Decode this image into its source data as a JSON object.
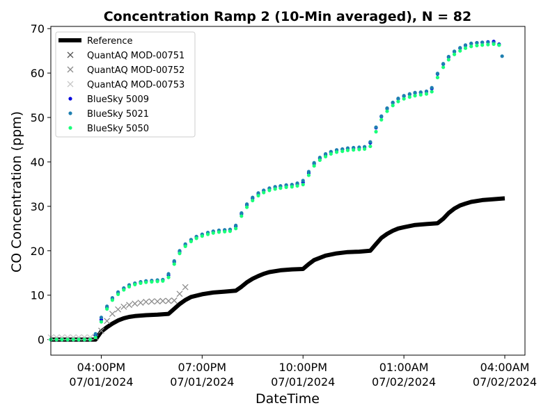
{
  "chart_data": {
    "type": "scatter",
    "title": "Concentration Ramp 2 (10-Min averaged), N = 82",
    "xlabel": "DateTime",
    "ylabel": "CO Concentration (ppm)",
    "x_unit": "hours",
    "xlim": [
      14.5,
      28.6
    ],
    "ylim": [
      -3.5,
      70.5
    ],
    "x_ticks": [
      {
        "x": 16,
        "line1": "04:00PM",
        "line2": "07/01/2024"
      },
      {
        "x": 19,
        "line1": "07:00PM",
        "line2": "07/01/2024"
      },
      {
        "x": 22,
        "line1": "10:00PM",
        "line2": "07/01/2024"
      },
      {
        "x": 25,
        "line1": "01:00AM",
        "line2": "07/02/2024"
      },
      {
        "x": 28,
        "line1": "04:00AM",
        "line2": "07/02/2024"
      }
    ],
    "y_ticks": [
      0,
      10,
      20,
      30,
      40,
      50,
      60,
      70
    ],
    "legend_position": "upper-left",
    "series": [
      {
        "name": "Reference",
        "style": "line",
        "color": "#000000",
        "x": [
          14.5,
          15.0,
          15.5,
          15.83,
          16.0,
          16.17,
          16.33,
          16.5,
          16.67,
          16.83,
          17.0,
          17.33,
          17.67,
          18.0,
          18.33,
          18.5,
          18.67,
          19.0,
          19.33,
          19.67,
          20.0,
          20.17,
          20.33,
          20.5,
          20.67,
          20.83,
          21.0,
          21.33,
          21.67,
          22.0,
          22.17,
          22.33,
          22.67,
          23.0,
          23.33,
          23.67,
          24.0,
          24.17,
          24.33,
          24.5,
          24.67,
          24.83,
          25.0,
          25.33,
          25.67,
          26.0,
          26.17,
          26.33,
          26.5,
          26.67,
          26.83,
          27.0,
          27.33,
          27.67,
          28.0
        ],
        "y": [
          0,
          0,
          0,
          0,
          1.8,
          2.8,
          3.6,
          4.3,
          4.8,
          5.1,
          5.3,
          5.5,
          5.6,
          5.8,
          8.0,
          8.9,
          9.6,
          10.2,
          10.6,
          10.8,
          11.0,
          11.9,
          12.9,
          13.7,
          14.3,
          14.8,
          15.2,
          15.6,
          15.8,
          15.9,
          17.0,
          17.9,
          18.9,
          19.4,
          19.7,
          19.8,
          20.0,
          21.5,
          22.9,
          23.8,
          24.5,
          25.0,
          25.3,
          25.8,
          26.0,
          26.2,
          27.2,
          28.5,
          29.5,
          30.2,
          30.6,
          31.0,
          31.4,
          31.6,
          31.8
        ]
      },
      {
        "name": "QuantAQ MOD-00751",
        "style": "x",
        "color": "#555555",
        "x": [],
        "y": []
      },
      {
        "name": "QuantAQ MOD-00752",
        "style": "x",
        "color": "#8c8c8c",
        "x": [
          15.83,
          16.0,
          16.17,
          16.33,
          16.5,
          16.67,
          16.83,
          17.0,
          17.17,
          17.33,
          17.5,
          17.67,
          17.83,
          18.0,
          18.17,
          18.33,
          18.5
        ],
        "y": [
          0.5,
          2.0,
          4.2,
          5.8,
          6.8,
          7.4,
          7.8,
          8.1,
          8.3,
          8.5,
          8.6,
          8.6,
          8.7,
          8.7,
          8.8,
          10.3,
          11.8
        ]
      },
      {
        "name": "QuantAQ MOD-00753",
        "style": "x",
        "color": "#c8c8c8",
        "x": [
          14.5,
          14.67,
          14.83,
          15.0,
          15.17,
          15.33,
          15.5,
          15.67
        ],
        "y": [
          0.5,
          0.5,
          0.5,
          0.5,
          0.5,
          0.5,
          0.5,
          0.5
        ]
      },
      {
        "name": "BlueSky 5009",
        "style": "dot",
        "color": "#0000dd",
        "x": [
          14.5,
          14.67,
          14.83,
          15.0,
          15.17,
          15.33,
          15.5,
          15.67,
          15.83,
          16.0,
          16.17,
          16.33,
          16.5,
          16.67,
          16.83,
          17.0,
          17.17,
          17.33,
          17.5,
          17.67,
          17.83,
          18.0,
          18.17,
          18.33,
          18.5,
          18.67,
          18.83,
          19.0,
          19.17,
          19.33,
          19.5,
          19.67,
          19.83,
          20.0,
          20.17,
          20.33,
          20.5,
          20.67,
          20.83,
          21.0,
          21.17,
          21.33,
          21.5,
          21.67,
          21.83,
          22.0,
          22.17,
          22.33,
          22.5,
          22.67,
          22.83,
          23.0,
          23.17,
          23.33,
          23.5,
          23.67,
          23.83,
          24.0,
          24.17,
          24.33,
          24.5,
          24.67,
          24.83,
          25.0,
          25.17,
          25.33,
          25.5,
          25.67,
          25.83,
          26.0,
          26.17,
          26.33,
          26.5,
          26.67,
          26.83,
          27.0,
          27.17,
          27.33,
          27.5,
          27.67,
          27.83
        ],
        "y": [
          0,
          0,
          0,
          0,
          0,
          0,
          0,
          0,
          1.0,
          4.5,
          7.2,
          9.2,
          10.5,
          11.5,
          12.2,
          12.6,
          12.9,
          13.1,
          13.2,
          13.3,
          13.4,
          14.5,
          17.5,
          19.8,
          21.3,
          22.4,
          23.1,
          23.6,
          24.0,
          24.3,
          24.5,
          24.6,
          24.7,
          25.5,
          28.3,
          30.3,
          31.8,
          32.8,
          33.5,
          34.0,
          34.3,
          34.5,
          34.7,
          34.8,
          35.0,
          35.4,
          37.5,
          39.6,
          40.8,
          41.6,
          42.2,
          42.6,
          42.8,
          43.0,
          43.1,
          43.2,
          43.3,
          44.3,
          47.7,
          50.2,
          52.0,
          53.3,
          54.2,
          54.8,
          55.2,
          55.5,
          55.6,
          55.8,
          56.5,
          59.8,
          62.0,
          63.6,
          64.8,
          65.6,
          66.2,
          66.6,
          66.8,
          66.9,
          67.0,
          67.1,
          66.5
        ]
      },
      {
        "name": "BlueSky 5021",
        "style": "dot",
        "color": "#1e7fb0",
        "x": [
          14.5,
          14.67,
          14.83,
          15.0,
          15.17,
          15.33,
          15.5,
          15.67,
          15.83,
          16.0,
          16.17,
          16.33,
          16.5,
          16.67,
          16.83,
          17.0,
          17.17,
          17.33,
          17.5,
          17.67,
          17.83,
          18.0,
          18.17,
          18.33,
          18.5,
          18.67,
          18.83,
          19.0,
          19.17,
          19.33,
          19.5,
          19.67,
          19.83,
          20.0,
          20.17,
          20.33,
          20.5,
          20.67,
          20.83,
          21.0,
          21.17,
          21.33,
          21.5,
          21.67,
          21.83,
          22.0,
          22.17,
          22.33,
          22.5,
          22.67,
          22.83,
          23.0,
          23.17,
          23.33,
          23.5,
          23.67,
          23.83,
          24.0,
          24.17,
          24.33,
          24.5,
          24.67,
          24.83,
          25.0,
          25.17,
          25.33,
          25.5,
          25.67,
          25.83,
          26.0,
          26.17,
          26.33,
          26.5,
          26.67,
          26.83,
          27.0,
          27.17,
          27.33,
          27.5,
          27.67,
          27.83,
          27.92
        ],
        "y": [
          0,
          0,
          0,
          0,
          0,
          0,
          0,
          0,
          1.3,
          5.0,
          7.5,
          9.4,
          10.7,
          11.6,
          12.3,
          12.7,
          13.0,
          13.2,
          13.3,
          13.4,
          13.5,
          14.8,
          17.7,
          20.0,
          21.5,
          22.5,
          23.2,
          23.7,
          24.1,
          24.4,
          24.6,
          24.7,
          24.8,
          25.7,
          28.5,
          30.5,
          32.0,
          33.0,
          33.6,
          34.1,
          34.4,
          34.6,
          34.8,
          34.9,
          35.2,
          35.8,
          37.8,
          39.8,
          41.0,
          41.8,
          42.3,
          42.7,
          42.9,
          43.1,
          43.2,
          43.3,
          43.4,
          44.5,
          47.8,
          50.3,
          52.1,
          53.4,
          54.3,
          54.9,
          55.3,
          55.6,
          55.7,
          55.9,
          56.7,
          59.9,
          62.1,
          63.7,
          64.9,
          65.7,
          66.3,
          66.7,
          66.8,
          66.9,
          66.9,
          66.8,
          66.3,
          63.8
        ]
      },
      {
        "name": "BlueSky 5050",
        "style": "dot",
        "color": "#19ff7a",
        "x": [
          14.5,
          14.67,
          14.83,
          15.0,
          15.17,
          15.33,
          15.5,
          15.67,
          15.83,
          16.0,
          16.17,
          16.33,
          16.5,
          16.67,
          16.83,
          17.0,
          17.17,
          17.33,
          17.5,
          17.67,
          17.83,
          18.0,
          18.17,
          18.33,
          18.5,
          18.67,
          18.83,
          19.0,
          19.17,
          19.33,
          19.5,
          19.67,
          19.83,
          20.0,
          20.17,
          20.33,
          20.5,
          20.67,
          20.83,
          21.0,
          21.17,
          21.33,
          21.5,
          21.67,
          21.83,
          22.0,
          22.17,
          22.33,
          22.5,
          22.67,
          22.83,
          23.0,
          23.17,
          23.33,
          23.5,
          23.67,
          23.83,
          24.0,
          24.17,
          24.33,
          24.5,
          24.67,
          24.83,
          25.0,
          25.17,
          25.33,
          25.5,
          25.67,
          25.83,
          26.0,
          26.17,
          26.33,
          26.5,
          26.67,
          26.83,
          27.0,
          27.17,
          27.33,
          27.5,
          27.67,
          27.83
        ],
        "y": [
          0,
          0,
          0,
          0,
          0,
          0,
          0,
          0,
          0.5,
          4.0,
          6.9,
          8.9,
          10.2,
          11.2,
          11.9,
          12.4,
          12.7,
          12.9,
          13.0,
          13.1,
          13.2,
          14.0,
          17.0,
          19.4,
          21.0,
          22.1,
          22.8,
          23.3,
          23.7,
          24.0,
          24.2,
          24.3,
          24.4,
          25.0,
          27.8,
          29.8,
          31.3,
          32.4,
          33.1,
          33.6,
          33.9,
          34.1,
          34.3,
          34.4,
          34.6,
          34.9,
          37.0,
          39.1,
          40.4,
          41.2,
          41.8,
          42.2,
          42.4,
          42.6,
          42.7,
          42.8,
          42.9,
          43.5,
          46.8,
          49.5,
          51.4,
          52.7,
          53.6,
          54.2,
          54.6,
          54.9,
          55.1,
          55.3,
          55.8,
          59.0,
          61.3,
          63.0,
          64.2,
          65.0,
          65.6,
          66.0,
          66.2,
          66.3,
          66.4,
          66.5,
          66.3
        ]
      }
    ]
  }
}
